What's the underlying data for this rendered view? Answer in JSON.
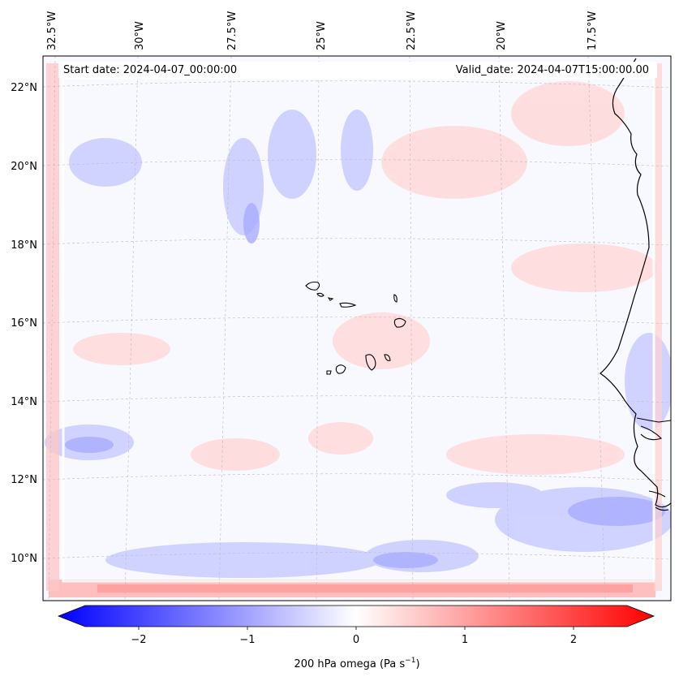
{
  "map": {
    "start_label": "Start date: 2024-04-07_00:00:00",
    "valid_label": "Valid_date: 2024-04-07T15:00:00.00",
    "lon_ticks": [
      "32.5°W",
      "30°W",
      "27.5°W",
      "25°W",
      "22.5°W",
      "20°W",
      "17.5°W"
    ],
    "lat_ticks": [
      "22°N",
      "20°N",
      "18°N",
      "16°N",
      "14°N",
      "12°N",
      "10°N"
    ],
    "field": "200 hPa omega",
    "colors": {
      "negative": "#0000ff",
      "zero": "#ffffff",
      "positive": "#ff0000",
      "coast": "#000000",
      "grid": "#bbbbbb"
    }
  },
  "colorbar": {
    "ticks": [
      "−2",
      "−1",
      "0",
      "1",
      "2"
    ],
    "label_main": "200 hPa omega (Pa s",
    "label_exp": "−1",
    "label_end": ")",
    "range": [
      -2.75,
      2.75
    ]
  }
}
